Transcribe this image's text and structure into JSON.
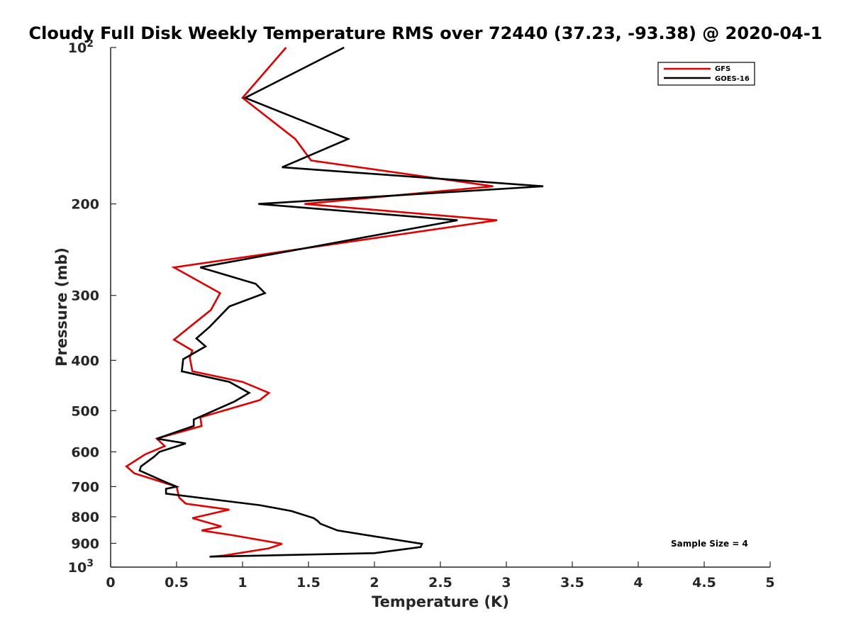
{
  "chart_data": {
    "type": "line",
    "title": "Cloudy Full Disk Weekly Temperature RMS over 72440 (37.23, -93.38) @ 2020-04-1",
    "xlabel": "Temperature (K)",
    "ylabel": "Pressure (mb)",
    "xlim": [
      0,
      5
    ],
    "ylim": [
      1000,
      100
    ],
    "yscale": "log",
    "x_ticks": [
      "0",
      "0.5",
      "1",
      "1.5",
      "2",
      "2.5",
      "3",
      "3.5",
      "4",
      "4.5",
      "5"
    ],
    "y_ticks": [
      {
        "value": 100,
        "label": "10",
        "sup": "2"
      },
      {
        "value": 200,
        "label": "200",
        "sup": ""
      },
      {
        "value": 300,
        "label": "300",
        "sup": ""
      },
      {
        "value": 400,
        "label": "400",
        "sup": ""
      },
      {
        "value": 500,
        "label": "500",
        "sup": ""
      },
      {
        "value": 600,
        "label": "600",
        "sup": ""
      },
      {
        "value": 700,
        "label": "700",
        "sup": ""
      },
      {
        "value": 800,
        "label": "800",
        "sup": ""
      },
      {
        "value": 900,
        "label": "900",
        "sup": ""
      },
      {
        "value": 1000,
        "label": "10",
        "sup": "3"
      }
    ],
    "grid": false,
    "legend_position": "top-right",
    "annotation": "Sample Size = 4",
    "series": [
      {
        "name": "GFS",
        "color": "#e00000",
        "points": [
          [
            1.33,
            100
          ],
          [
            1.0,
            125
          ],
          [
            1.4,
            150
          ],
          [
            1.52,
            165
          ],
          [
            2.9,
            185
          ],
          [
            1.47,
            200
          ],
          [
            2.93,
            215
          ],
          [
            0.48,
            265
          ],
          [
            0.83,
            297
          ],
          [
            0.76,
            320
          ],
          [
            0.6,
            345
          ],
          [
            0.48,
            365
          ],
          [
            0.62,
            383
          ],
          [
            0.6,
            395
          ],
          [
            0.62,
            420
          ],
          [
            1.0,
            440
          ],
          [
            1.2,
            462
          ],
          [
            1.13,
            477
          ],
          [
            0.68,
            515
          ],
          [
            0.69,
            535
          ],
          [
            0.35,
            566
          ],
          [
            0.41,
            585
          ],
          [
            0.26,
            607
          ],
          [
            0.12,
            640
          ],
          [
            0.18,
            660
          ],
          [
            0.5,
            700
          ],
          [
            0.52,
            735
          ],
          [
            0.57,
            755
          ],
          [
            0.9,
            775
          ],
          [
            0.62,
            805
          ],
          [
            0.84,
            835
          ],
          [
            0.69,
            850
          ],
          [
            0.92,
            868
          ],
          [
            1.3,
            902
          ],
          [
            1.2,
            920
          ],
          [
            0.86,
            950
          ],
          [
            0.75,
            955
          ]
        ]
      },
      {
        "name": "GOES-16",
        "color": "#000000",
        "points": [
          [
            1.77,
            100
          ],
          [
            1.02,
            125
          ],
          [
            1.8,
            150
          ],
          [
            1.3,
            170
          ],
          [
            3.28,
            185
          ],
          [
            1.12,
            200
          ],
          [
            2.63,
            215
          ],
          [
            0.68,
            265
          ],
          [
            1.1,
            285
          ],
          [
            1.17,
            297
          ],
          [
            0.9,
            315
          ],
          [
            0.75,
            345
          ],
          [
            0.65,
            363
          ],
          [
            0.72,
            376
          ],
          [
            0.55,
            398
          ],
          [
            0.54,
            420
          ],
          [
            0.9,
            440
          ],
          [
            1.05,
            462
          ],
          [
            0.94,
            480
          ],
          [
            0.63,
            520
          ],
          [
            0.63,
            535
          ],
          [
            0.35,
            566
          ],
          [
            0.57,
            578
          ],
          [
            0.37,
            600
          ],
          [
            0.33,
            613
          ],
          [
            0.23,
            640
          ],
          [
            0.22,
            652
          ],
          [
            0.41,
            685
          ],
          [
            0.5,
            700
          ],
          [
            0.42,
            707
          ],
          [
            0.42,
            722
          ],
          [
            1.13,
            760
          ],
          [
            1.37,
            780
          ],
          [
            1.54,
            805
          ],
          [
            1.57,
            815
          ],
          [
            1.59,
            825
          ],
          [
            1.72,
            850
          ],
          [
            2.36,
            902
          ],
          [
            2.35,
            915
          ],
          [
            2.0,
            940
          ],
          [
            0.75,
            955
          ]
        ]
      }
    ]
  }
}
